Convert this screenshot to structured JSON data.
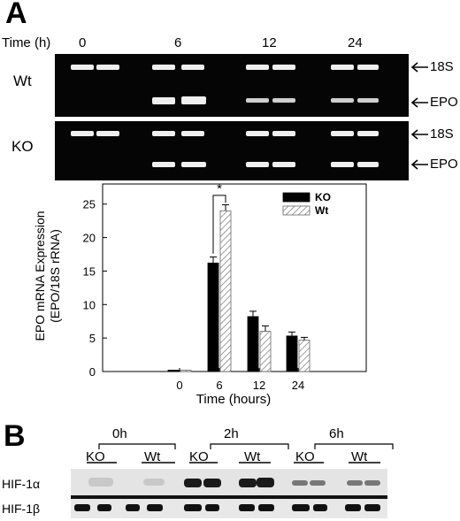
{
  "panel_a": {
    "letter": "A",
    "time_label": "Time (h)",
    "time_points": [
      "0",
      "6",
      "12",
      "24"
    ],
    "rows": [
      {
        "genotype": "Wt",
        "bands": [
          "18S",
          "EPO"
        ]
      },
      {
        "genotype": "KO",
        "bands": [
          "18S",
          "EPO"
        ]
      }
    ]
  },
  "chart_data": {
    "type": "bar",
    "categories": [
      "0",
      "6",
      "12",
      "24"
    ],
    "series": [
      {
        "name": "KO",
        "values": [
          0.2,
          16.2,
          8.2,
          5.3
        ],
        "errors": [
          0.1,
          0.9,
          0.8,
          0.6
        ],
        "fill": "solid-black"
      },
      {
        "name": "Wt",
        "values": [
          0.2,
          24.0,
          6.0,
          4.7
        ],
        "errors": [
          0.1,
          0.9,
          0.8,
          0.4
        ],
        "fill": "diagonal-hatch"
      }
    ],
    "title": "",
    "xlabel": "Time (hours)",
    "ylabel": "EPO mRNA Expression (EPO/18S rRNA)",
    "ylabel_lines": [
      "EPO mRNA Expression",
      "(EPO/18S rRNA)"
    ],
    "ylim": [
      0,
      28
    ],
    "yticks": [
      0,
      5,
      10,
      15,
      20,
      25
    ],
    "legend_position": "top-right",
    "grid": false,
    "annotations": [
      {
        "text": "*",
        "between": [
          "KO",
          "Wt"
        ],
        "category": "6"
      }
    ]
  },
  "panel_b": {
    "letter": "B",
    "time_points": [
      "0h",
      "2h",
      "6h"
    ],
    "group_labels": [
      "KO",
      "Wt"
    ],
    "proteins": [
      "HIF-1α",
      "HIF-1β"
    ]
  },
  "colors": {
    "gel": "#050505",
    "band": "#f2f2f2",
    "bar_ko": "#000000",
    "blot_bg": "#e6e6e6"
  }
}
